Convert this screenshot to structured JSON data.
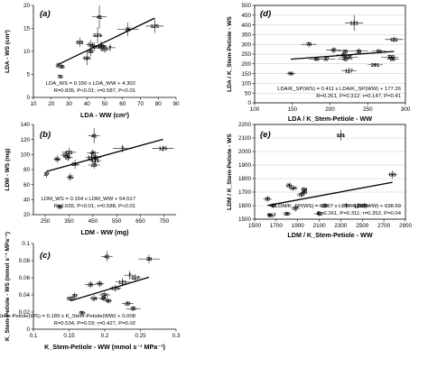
{
  "chart_data": [
    {
      "type": "scatter",
      "panel": "(a)",
      "xlabel": "LDA - WW (cm²)",
      "ylabel": "LDA - WS (cm²)",
      "xlim": [
        10,
        90
      ],
      "ylim": [
        0,
        20
      ],
      "xticks": [
        10,
        20,
        30,
        40,
        50,
        60,
        70,
        80,
        90
      ],
      "xtick_labels": [
        "10",
        "20",
        "30",
        "40",
        "50",
        "60",
        "70",
        "80",
        "90"
      ],
      "yticks": [
        0,
        5,
        10,
        15,
        20
      ],
      "ytick_labels": [
        "0",
        "5",
        "10",
        "15",
        "20"
      ],
      "frame": "open",
      "grid": false,
      "annotations": [
        "LDA_WS = 0.150 x LDA_WW + 4.302",
        "R=0.835, P<0.01; τ=0.587, P<0.01"
      ],
      "points": [
        {
          "label": "37",
          "x": 24,
          "y": 7.0,
          "xerr": 1.0,
          "yerr": 0.6
        },
        {
          "label": "96",
          "x": 26,
          "y": 6.7,
          "xerr": 0.8,
          "yerr": 0.5
        },
        {
          "label": "70",
          "x": 25,
          "y": 4.5,
          "xerr": 0.6,
          "yerr": 0.4
        },
        {
          "label": "GS",
          "x": 36,
          "y": 12.0,
          "xerr": 2.0,
          "yerr": 1.0
        },
        {
          "label": "54",
          "x": 42,
          "y": 11.5,
          "xerr": 2.5,
          "yerr": 1.0
        },
        {
          "label": "26",
          "x": 48,
          "y": 11.2,
          "xerr": 3.0,
          "yerr": 1.0
        },
        {
          "label": "23",
          "x": 50,
          "y": 10.5,
          "xerr": 2.5,
          "yerr": 0.8
        },
        {
          "label": "7",
          "x": 53,
          "y": 10.8,
          "xerr": 3.0,
          "yerr": 0.8
        },
        {
          "label": "40",
          "x": 44,
          "y": 11.0,
          "xerr": 2.5,
          "yerr": 1.0
        },
        {
          "label": "35",
          "x": 42,
          "y": 10.0,
          "xerr": 2.0,
          "yerr": 1.0
        },
        {
          "label": "SK",
          "x": 40,
          "y": 8.5,
          "xerr": 2.5,
          "yerr": 1.5
        },
        {
          "label": "121",
          "x": 46,
          "y": 13.5,
          "xerr": 3.0,
          "yerr": 1.8
        },
        {
          "label": "117",
          "x": 48,
          "y": 11.0,
          "xerr": 3.0,
          "yerr": 1.0
        },
        {
          "label": "41",
          "x": 47,
          "y": 17.5,
          "xerr": 4.0,
          "yerr": 2.5
        },
        {
          "label": "38",
          "x": 63,
          "y": 14.8,
          "xerr": 6.0,
          "yerr": 1.5
        },
        {
          "label": "125",
          "x": 78,
          "y": 15.5,
          "xerr": 5.0,
          "yerr": 1.5
        }
      ]
    },
    {
      "type": "scatter",
      "panel": "(b)",
      "xlabel": "LDM - WW (mg)",
      "ylabel": "LDM - WS (mg)",
      "xlim": [
        200,
        800
      ],
      "ylim": [
        20,
        140
      ],
      "xticks": [
        250,
        350,
        450,
        550,
        650,
        750
      ],
      "xtick_labels": [
        "250",
        "350",
        "450",
        "550",
        "650",
        "750"
      ],
      "yticks": [
        20,
        40,
        60,
        80,
        100,
        120,
        140
      ],
      "ytick_labels": [
        "20",
        "40",
        "60",
        "80",
        "100",
        "120",
        "140"
      ],
      "frame": "open",
      "grid": false,
      "annotations": [
        "LDM_WS = 0.154 x LDM_WW + 54.517",
        "R=0.655, P<0.01; τ=0.588, P<0.01"
      ],
      "points": [
        {
          "label": "37",
          "x": 255,
          "y": 74,
          "xerr": 10,
          "yerr": 5
        },
        {
          "label": "96",
          "x": 300,
          "y": 94,
          "xerr": 15,
          "yerr": 5
        },
        {
          "label": "70",
          "x": 310,
          "y": 30,
          "xerr": 10,
          "yerr": 3
        },
        {
          "label": "GS",
          "x": 350,
          "y": 103,
          "xerr": 30,
          "yerr": 6
        },
        {
          "label": "54",
          "x": 335,
          "y": 99,
          "xerr": 20,
          "yerr": 5
        },
        {
          "label": "26",
          "x": 345,
          "y": 96,
          "xerr": 20,
          "yerr": 5
        },
        {
          "label": "35",
          "x": 355,
          "y": 70,
          "xerr": 15,
          "yerr": 5
        },
        {
          "label": "SK",
          "x": 375,
          "y": 87,
          "xerr": 20,
          "yerr": 6
        },
        {
          "label": "48",
          "x": 450,
          "y": 102,
          "xerr": 25,
          "yerr": 5
        },
        {
          "label": "117",
          "x": 445,
          "y": 96,
          "xerr": 25,
          "yerr": 5
        },
        {
          "label": "121",
          "x": 460,
          "y": 92,
          "xerr": 25,
          "yerr": 6
        },
        {
          "label": "38",
          "x": 460,
          "y": 96,
          "xerr": 25,
          "yerr": 5
        },
        {
          "label": "23",
          "x": 455,
          "y": 86,
          "xerr": 25,
          "yerr": 5
        },
        {
          "label": "41",
          "x": 455,
          "y": 125,
          "xerr": 25,
          "yerr": 10
        },
        {
          "label": "7",
          "x": 575,
          "y": 108,
          "xerr": 40,
          "yerr": 5
        },
        {
          "label": "125",
          "x": 745,
          "y": 108,
          "xerr": 45,
          "yerr": 4
        }
      ]
    },
    {
      "type": "scatter",
      "panel": "(c)",
      "xlabel": "K_Stem-Petiole - WW (mmol s⁻¹ MPa⁻¹)",
      "ylabel": "K_Stem-Petiole - WS (mmol s⁻¹ MPa⁻¹)",
      "xlim": [
        0.1,
        0.3
      ],
      "ylim": [
        0,
        0.1
      ],
      "xticks": [
        0.1,
        0.15,
        0.2,
        0.25,
        0.3
      ],
      "xtick_labels": [
        "0.1",
        "0.15",
        "0.2",
        "0.25",
        "0.3"
      ],
      "yticks": [
        0,
        0.02,
        0.04,
        0.06,
        0.08,
        0.1
      ],
      "ytick_labels": [
        "0",
        "0.02",
        "0.04",
        "0.06",
        "0.08",
        "0.1"
      ],
      "frame": "open",
      "grid": false,
      "annotations": [
        "K_Stem-Petiole(WS) = 0.189 x K_Stem-Petiole(WW) + 0.008",
        "R=0.534, P=0.03; τ=0.427, P=0.02"
      ],
      "points": [
        {
          "label": "GS",
          "x": 0.152,
          "y": 0.036,
          "xerr": 0.004,
          "yerr": 0.003
        },
        {
          "label": "37",
          "x": 0.158,
          "y": 0.039,
          "xerr": 0.004,
          "yerr": 0.004
        },
        {
          "label": "70",
          "x": 0.168,
          "y": 0.019,
          "xerr": 0.005,
          "yerr": 0.003
        },
        {
          "label": "26",
          "x": 0.18,
          "y": 0.052,
          "xerr": 0.008,
          "yerr": 0.004
        },
        {
          "label": "54",
          "x": 0.185,
          "y": 0.036,
          "xerr": 0.006,
          "yerr": 0.004
        },
        {
          "label": "96",
          "x": 0.193,
          "y": 0.053,
          "xerr": 0.006,
          "yerr": 0.004
        },
        {
          "label": "SK",
          "x": 0.2,
          "y": 0.04,
          "xerr": 0.008,
          "yerr": 0.004
        },
        {
          "label": "48",
          "x": 0.198,
          "y": 0.036,
          "xerr": 0.006,
          "yerr": 0.003
        },
        {
          "label": "40",
          "x": 0.205,
          "y": 0.033,
          "xerr": 0.005,
          "yerr": 0.003
        },
        {
          "label": "41",
          "x": 0.203,
          "y": 0.085,
          "xerr": 0.008,
          "yerr": 0.006
        },
        {
          "label": "125",
          "x": 0.215,
          "y": 0.048,
          "xerr": 0.008,
          "yerr": 0.004
        },
        {
          "label": "7",
          "x": 0.235,
          "y": 0.063,
          "xerr": 0.008,
          "yerr": 0.005
        },
        {
          "label": "117",
          "x": 0.243,
          "y": 0.06,
          "xerr": 0.008,
          "yerr": 0.004
        },
        {
          "label": "121",
          "x": 0.225,
          "y": 0.055,
          "xerr": 0.01,
          "yerr": 0.005
        },
        {
          "label": "38",
          "x": 0.262,
          "y": 0.082,
          "xerr": 0.015,
          "yerr": 0.005
        },
        {
          "label": "23",
          "x": 0.232,
          "y": 0.03,
          "xerr": 0.008,
          "yerr": 0.003
        },
        {
          "label": "35",
          "x": 0.24,
          "y": 0.024,
          "xerr": 0.01,
          "yerr": 0.003
        }
      ]
    },
    {
      "type": "scatter",
      "panel": "(d)",
      "xlabel": "LDA / K_Stem-Petiole - WW",
      "ylabel": "LDA / K_Stem-Petiole - WS",
      "xlim": [
        100,
        300
      ],
      "ylim": [
        0,
        500
      ],
      "xticks": [
        100,
        150,
        200,
        250,
        300
      ],
      "xtick_labels": [
        "100",
        "150",
        "200",
        "250",
        "300"
      ],
      "yticks": [
        0,
        50,
        100,
        150,
        200,
        250,
        300,
        350,
        400,
        450,
        500
      ],
      "ytick_labels": [
        "0",
        "50",
        "100",
        "150",
        "200",
        "250",
        "300",
        "350",
        "400",
        "450",
        "500"
      ],
      "frame": "box",
      "grid": true,
      "annotations": [
        "LDA/K_SP(WS) = 0.411 x LDA/K_SP(WW) + 177.26",
        "R=0.261, P=0.312; τ=0.147, P=0.41"
      ],
      "points": [
        {
          "label": "96",
          "x": 148,
          "y": 150,
          "xerr": 6,
          "yerr": 10
        },
        {
          "label": "70",
          "x": 172,
          "y": 300,
          "xerr": 10,
          "yerr": 15
        },
        {
          "label": "40",
          "x": 182,
          "y": 225,
          "xerr": 10,
          "yerr": 10
        },
        {
          "label": "37",
          "x": 195,
          "y": 225,
          "xerr": 12,
          "yerr": 10
        },
        {
          "label": "35",
          "x": 205,
          "y": 270,
          "xerr": 10,
          "yerr": 15
        },
        {
          "label": "26",
          "x": 220,
          "y": 265,
          "xerr": 10,
          "yerr": 10
        },
        {
          "label": "48",
          "x": 218,
          "y": 245,
          "xerr": 10,
          "yerr": 12
        },
        {
          "label": "SK",
          "x": 225,
          "y": 235,
          "xerr": 12,
          "yerr": 12
        },
        {
          "label": "41",
          "x": 220,
          "y": 225,
          "xerr": 10,
          "yerr": 10
        },
        {
          "label": "117",
          "x": 225,
          "y": 165,
          "xerr": 10,
          "yerr": 15
        },
        {
          "label": "121",
          "x": 232,
          "y": 410,
          "xerr": 12,
          "yerr": 40
        },
        {
          "label": "38",
          "x": 238,
          "y": 265,
          "xerr": 12,
          "yerr": 15
        },
        {
          "label": "54",
          "x": 265,
          "y": 265,
          "xerr": 10,
          "yerr": 12
        },
        {
          "label": "201",
          "x": 260,
          "y": 195,
          "xerr": 10,
          "yerr": 10
        },
        {
          "label": "7",
          "x": 278,
          "y": 235,
          "xerr": 10,
          "yerr": 10
        },
        {
          "label": "23",
          "x": 282,
          "y": 235,
          "xerr": 8,
          "yerr": 10
        },
        {
          "label": "26",
          "x": 283,
          "y": 225,
          "xerr": 8,
          "yerr": 10
        },
        {
          "label": "GS",
          "x": 285,
          "y": 325,
          "xerr": 12,
          "yerr": 15
        }
      ]
    },
    {
      "type": "scatter",
      "panel": "(e)",
      "xlabel": "LDM / K_Stem-Petiole - WW",
      "ylabel": "LDM / K_Stem-Petiole - WS",
      "xlim": [
        1500,
        2900
      ],
      "ylim": [
        1500,
        2200
      ],
      "xticks": [
        1500,
        1700,
        1900,
        2100,
        2300,
        2500,
        2700,
        2900
      ],
      "xtick_labels": [
        "1500",
        "1700",
        "1900",
        "2100",
        "2300",
        "2500",
        "2700",
        "2900"
      ],
      "yticks": [
        1500,
        1600,
        1700,
        1800,
        1900,
        2000,
        2100,
        2200
      ],
      "ytick_labels": [
        "1500",
        "1600",
        "1700",
        "1800",
        "1900",
        "2000",
        "2100",
        "2200"
      ],
      "frame": "box",
      "grid": true,
      "annotations": [
        "LDM/K_SP(WS) = 0.107 x LDM/K_SP(WW) + 638.69",
        "R=0.261, P=0.311; τ=0.352, P=0.04"
      ],
      "points": [
        {
          "label": "96",
          "x": 1640,
          "y": 1530,
          "xerr": 15,
          "yerr": 15
        },
        {
          "label": "117",
          "x": 1660,
          "y": 1530,
          "xerr": 30,
          "yerr": 15
        },
        {
          "label": "35",
          "x": 1620,
          "y": 1650,
          "xerr": 40,
          "yerr": 20
        },
        {
          "label": "40",
          "x": 1670,
          "y": 1600,
          "xerr": 30,
          "yerr": 20
        },
        {
          "label": "37",
          "x": 1880,
          "y": 1580,
          "xerr": 40,
          "yerr": 25
        },
        {
          "label": "38",
          "x": 1800,
          "y": 1540,
          "xerr": 40,
          "yerr": 15
        },
        {
          "label": "26",
          "x": 1820,
          "y": 1750,
          "xerr": 30,
          "yerr": 20
        },
        {
          "label": "SK",
          "x": 1860,
          "y": 1730,
          "xerr": 40,
          "yerr": 20
        },
        {
          "label": "54",
          "x": 1960,
          "y": 1720,
          "xerr": 30,
          "yerr": 20
        },
        {
          "label": "41",
          "x": 2100,
          "y": 1540,
          "xerr": 50,
          "yerr": 20
        },
        {
          "label": "48",
          "x": 1960,
          "y": 1700,
          "xerr": 30,
          "yerr": 20
        },
        {
          "label": "70",
          "x": 1930,
          "y": 1680,
          "xerr": 40,
          "yerr": 20
        },
        {
          "label": "23",
          "x": 2150,
          "y": 1600,
          "xerr": 40,
          "yerr": 20
        },
        {
          "label": "121",
          "x": 2300,
          "y": 2120,
          "xerr": 40,
          "yerr": 40
        },
        {
          "label": "7",
          "x": 2350,
          "y": 1600,
          "xerr": 40,
          "yerr": 20
        },
        {
          "label": "125",
          "x": 2460,
          "y": 1600,
          "xerr": 40,
          "yerr": 20
        },
        {
          "label": "26",
          "x": 2520,
          "y": 1600,
          "xerr": 40,
          "yerr": 20
        },
        {
          "label": "GS",
          "x": 2780,
          "y": 1830,
          "xerr": 40,
          "yerr": 30
        }
      ]
    }
  ]
}
